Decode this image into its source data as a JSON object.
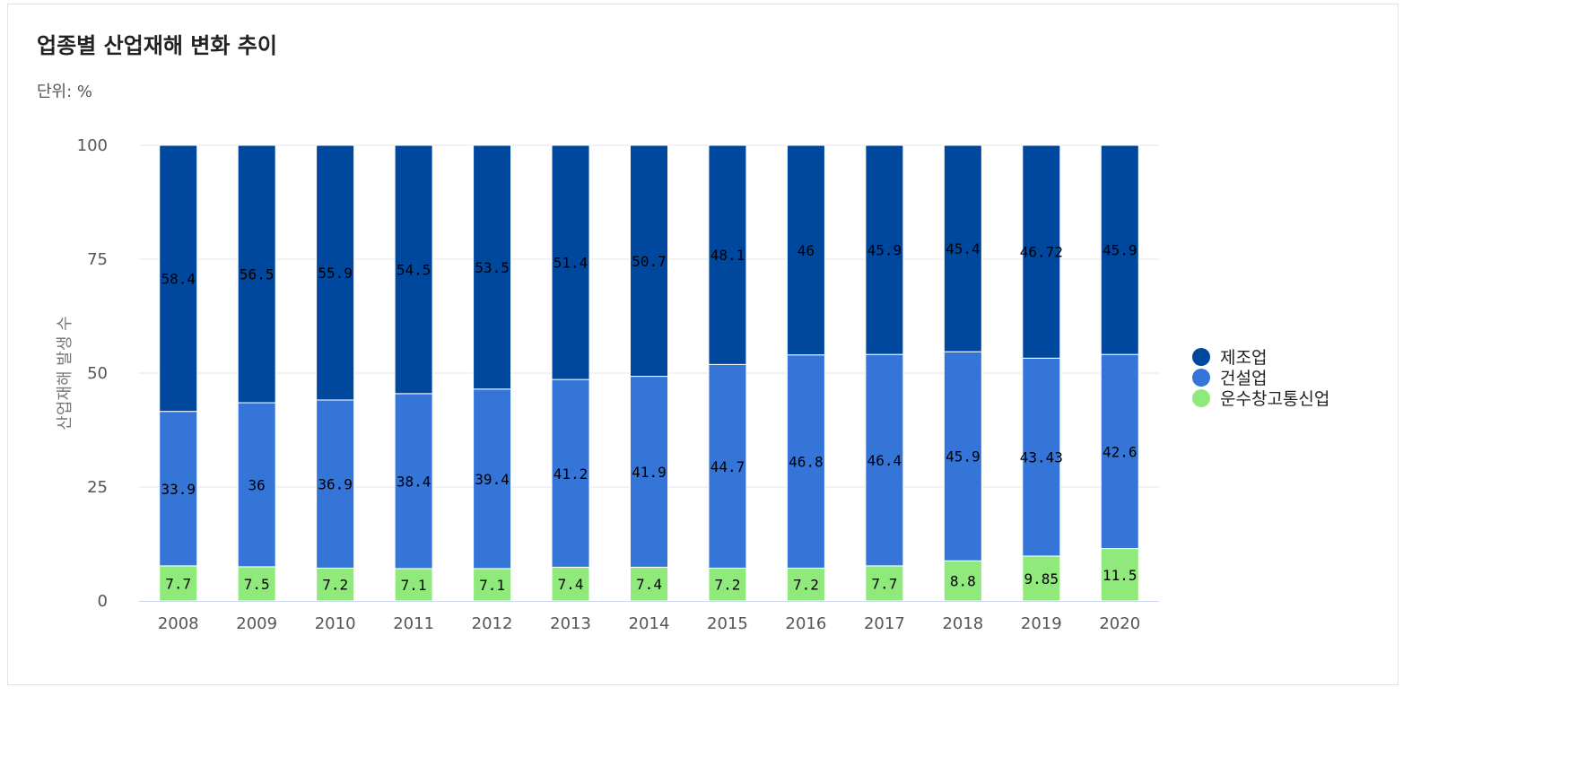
{
  "header": {
    "title": "업종별 산업재해 변화 추이",
    "unit": "단위: %"
  },
  "chart_data": {
    "type": "bar",
    "stacked": true,
    "title": "업종별 산업재해 변화 추이",
    "xlabel": "",
    "ylabel": "산업재해 발생 수",
    "ylim": [
      0,
      100
    ],
    "yticks": [
      0,
      25,
      50,
      75,
      100
    ],
    "grid": true,
    "legend_position": "right",
    "categories": [
      "2008",
      "2009",
      "2010",
      "2011",
      "2012",
      "2013",
      "2014",
      "2015",
      "2016",
      "2017",
      "2018",
      "2019",
      "2020"
    ],
    "series": [
      {
        "name": "운수창고통신업",
        "color": "#90ea7b",
        "values": [
          7.7,
          7.5,
          7.2,
          7.1,
          7.1,
          7.4,
          7.4,
          7.2,
          7.2,
          7.7,
          8.8,
          9.85,
          11.5
        ],
        "labels": [
          "7.7",
          "7.5",
          "7.2",
          "7.1",
          "7.1",
          "7.4",
          "7.4",
          "7.2",
          "7.2",
          "7.7",
          "8.8",
          "9.85",
          "11.5"
        ]
      },
      {
        "name": "건설업",
        "color": "#3575d8",
        "values": [
          33.9,
          36,
          36.9,
          38.4,
          39.4,
          41.2,
          41.9,
          44.7,
          46.8,
          46.4,
          45.9,
          43.43,
          42.6
        ],
        "labels": [
          "33.9",
          "36",
          "36.9",
          "38.4",
          "39.4",
          "41.2",
          "41.9",
          "44.7",
          "46.8",
          "46.4",
          "45.9",
          "43.43",
          "42.6"
        ]
      },
      {
        "name": "제조업",
        "color": "#00479e",
        "values": [
          58.4,
          56.5,
          55.9,
          54.5,
          53.5,
          51.4,
          50.7,
          48.1,
          46,
          45.9,
          45.4,
          46.72,
          45.9
        ],
        "labels": [
          "58.4",
          "56.5",
          "55.9",
          "54.5",
          "53.5",
          "51.4",
          "50.7",
          "48.1",
          "46",
          "45.9",
          "45.4",
          "46.72",
          "45.9"
        ]
      }
    ],
    "legend_order": [
      "제조업",
      "건설업",
      "운수창고통신업"
    ]
  }
}
